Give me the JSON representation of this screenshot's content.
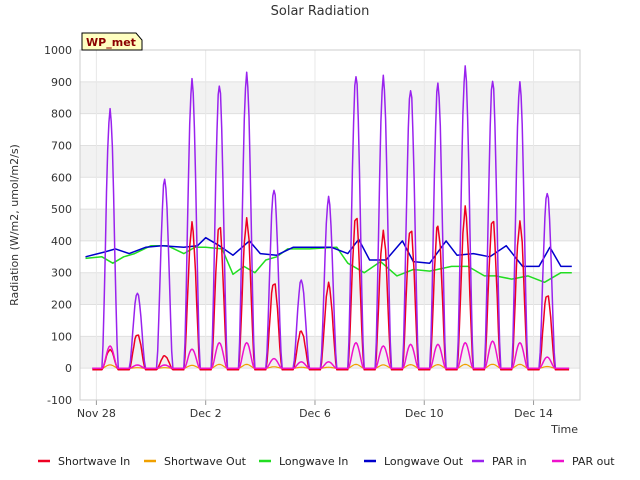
{
  "chart_data": {
    "type": "line",
    "title": "Solar Radiation",
    "xlabel": "Time",
    "ylabel": "Radiation (W/m2, umol/m2/s)",
    "badge": "WP_met",
    "ylim": [
      -100,
      1000
    ],
    "yticks": [
      -100,
      0,
      100,
      200,
      300,
      400,
      500,
      600,
      700,
      800,
      900,
      1000
    ],
    "xlim_days": [
      -0.6,
      17.7
    ],
    "xticks": [
      {
        "day": 0,
        "label": "Nov 28"
      },
      {
        "day": 4,
        "label": "Dec 2"
      },
      {
        "day": 8,
        "label": "Dec 6"
      },
      {
        "day": 12,
        "label": "Dec 10"
      },
      {
        "day": 16,
        "label": "Dec 14"
      }
    ],
    "grid": true,
    "legend_position": "bottom",
    "series": [
      {
        "name": "Shortwave In",
        "color": "#ee0022"
      },
      {
        "name": "Shortwave Out",
        "color": "#f0a000"
      },
      {
        "name": "Longwave In",
        "color": "#22dd22"
      },
      {
        "name": "Longwave Out",
        "color": "#0000cc"
      },
      {
        "name": "PAR in",
        "color": "#9922ee"
      },
      {
        "name": "PAR out",
        "color": "#ee11cc"
      }
    ],
    "daily_peaks": [
      {
        "day": 0.5,
        "sw_in": 60,
        "par_in": 820,
        "par_out": 70
      },
      {
        "day": 1.5,
        "sw_in": 110,
        "par_in": 240,
        "par_out": 10
      },
      {
        "day": 2.5,
        "sw_in": 40,
        "par_in": 600,
        "par_out": 10
      },
      {
        "day": 3.5,
        "sw_in": 460,
        "par_in": 910,
        "par_out": 60
      },
      {
        "day": 4.5,
        "sw_in": 460,
        "par_in": 900,
        "par_out": 80
      },
      {
        "day": 5.5,
        "sw_in": 480,
        "par_in": 935,
        "par_out": 80
      },
      {
        "day": 6.5,
        "sw_in": 280,
        "par_in": 570,
        "par_out": 30
      },
      {
        "day": 7.5,
        "sw_in": 120,
        "par_in": 280,
        "par_out": 20
      },
      {
        "day": 8.5,
        "sw_in": 270,
        "par_in": 540,
        "par_out": 20
      },
      {
        "day": 9.5,
        "sw_in": 490,
        "par_in": 930,
        "par_out": 80
      },
      {
        "day": 10.5,
        "sw_in": 440,
        "par_in": 925,
        "par_out": 70
      },
      {
        "day": 11.5,
        "sw_in": 455,
        "par_in": 890,
        "par_out": 75
      },
      {
        "day": 12.5,
        "sw_in": 460,
        "par_in": 905,
        "par_out": 75
      },
      {
        "day": 13.5,
        "sw_in": 510,
        "par_in": 950,
        "par_out": 80
      },
      {
        "day": 14.5,
        "sw_in": 480,
        "par_in": 915,
        "par_out": 85
      },
      {
        "day": 15.5,
        "sw_in": 470,
        "par_in": 905,
        "par_out": 80
      },
      {
        "day": 16.5,
        "sw_in": 240,
        "par_in": 560,
        "par_out": 35
      }
    ],
    "longwave_in": {
      "days": [
        -0.4,
        0.2,
        0.6,
        1.0,
        1.4,
        2.0,
        2.6,
        3.2,
        3.6,
        4.0,
        4.6,
        5.0,
        5.4,
        5.8,
        6.2,
        6.6,
        7.0,
        7.8,
        8.4,
        8.8,
        9.2,
        9.8,
        10.4,
        11.0,
        11.6,
        12.2,
        13.0,
        13.6,
        14.2,
        14.6,
        15.2,
        15.8,
        16.4,
        17.0,
        17.4
      ],
      "values": [
        345,
        350,
        330,
        350,
        360,
        385,
        385,
        360,
        380,
        380,
        375,
        295,
        320,
        300,
        340,
        350,
        375,
        375,
        378,
        380,
        330,
        300,
        335,
        290,
        310,
        305,
        320,
        320,
        290,
        290,
        280,
        290,
        270,
        300,
        300
      ]
    },
    "longwave_out": {
      "days": [
        -0.4,
        0.3,
        0.7,
        1.2,
        1.8,
        2.4,
        3.2,
        3.7,
        4.0,
        4.5,
        5.0,
        5.6,
        6.0,
        6.6,
        7.2,
        8.0,
        8.6,
        9.2,
        9.6,
        10.0,
        10.6,
        11.2,
        11.6,
        12.2,
        12.8,
        13.2,
        13.8,
        14.4,
        15.0,
        15.6,
        16.2,
        16.6,
        17.0,
        17.4
      ],
      "values": [
        350,
        365,
        375,
        360,
        380,
        385,
        380,
        385,
        410,
        385,
        355,
        400,
        360,
        355,
        380,
        380,
        380,
        360,
        405,
        340,
        340,
        400,
        335,
        330,
        400,
        355,
        360,
        350,
        385,
        320,
        320,
        380,
        320,
        320
      ]
    }
  },
  "legend": {
    "items": [
      "Shortwave In",
      "Shortwave Out",
      "Longwave In",
      "Longwave Out",
      "PAR in",
      "PAR out"
    ]
  }
}
